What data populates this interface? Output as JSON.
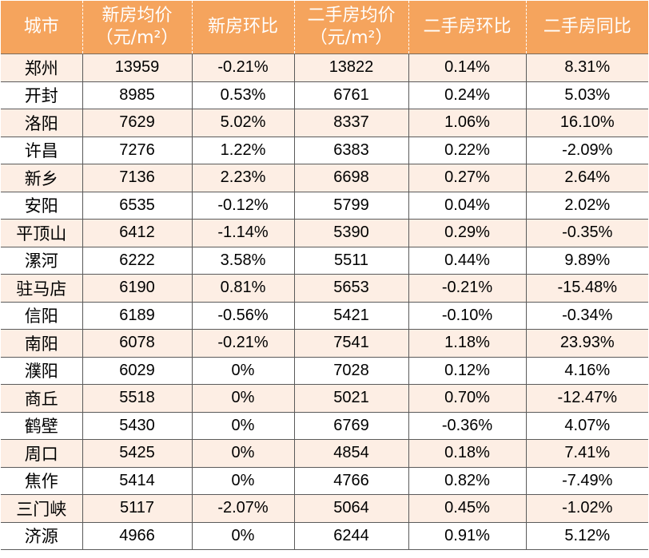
{
  "header": {
    "city": "城市",
    "new_price_line1": "新房均价",
    "new_price_line2": "（元/m²）",
    "new_mom": "新房环比",
    "second_price_line1": "二手房均价",
    "second_price_line2": "（元/m²）",
    "second_mom": "二手房环比",
    "second_yoy": "二手房同比"
  },
  "rows": [
    {
      "city": "郑州",
      "new_price": "13959",
      "new_mom": "-0.21%",
      "second_price": "13822",
      "second_mom": "0.14%",
      "second_yoy": "8.31%"
    },
    {
      "city": "开封",
      "new_price": "8985",
      "new_mom": "0.53%",
      "second_price": "6761",
      "second_mom": "0.24%",
      "second_yoy": "5.03%"
    },
    {
      "city": "洛阳",
      "new_price": "7629",
      "new_mom": "5.02%",
      "second_price": "8337",
      "second_mom": "1.06%",
      "second_yoy": "16.10%"
    },
    {
      "city": "许昌",
      "new_price": "7276",
      "new_mom": "1.22%",
      "second_price": "6383",
      "second_mom": "0.22%",
      "second_yoy": "-2.09%"
    },
    {
      "city": "新乡",
      "new_price": "7136",
      "new_mom": "2.23%",
      "second_price": "6698",
      "second_mom": "0.27%",
      "second_yoy": "2.64%"
    },
    {
      "city": "安阳",
      "new_price": "6535",
      "new_mom": "-0.12%",
      "second_price": "5799",
      "second_mom": "0.04%",
      "second_yoy": "2.02%"
    },
    {
      "city": "平顶山",
      "new_price": "6412",
      "new_mom": "-1.14%",
      "second_price": "5390",
      "second_mom": "0.29%",
      "second_yoy": "-0.35%"
    },
    {
      "city": "漯河",
      "new_price": "6222",
      "new_mom": "3.58%",
      "second_price": "5511",
      "second_mom": "0.44%",
      "second_yoy": "9.89%"
    },
    {
      "city": "驻马店",
      "new_price": "6190",
      "new_mom": "0.81%",
      "second_price": "5653",
      "second_mom": "-0.21%",
      "second_yoy": "-15.48%"
    },
    {
      "city": "信阳",
      "new_price": "6189",
      "new_mom": "-0.56%",
      "second_price": "5421",
      "second_mom": "-0.10%",
      "second_yoy": "-0.34%"
    },
    {
      "city": "南阳",
      "new_price": "6078",
      "new_mom": "-0.21%",
      "second_price": "7541",
      "second_mom": "1.18%",
      "second_yoy": "23.93%"
    },
    {
      "city": "濮阳",
      "new_price": "6029",
      "new_mom": "0%",
      "second_price": "7028",
      "second_mom": "0.12%",
      "second_yoy": "4.16%"
    },
    {
      "city": "商丘",
      "new_price": "5518",
      "new_mom": "0%",
      "second_price": "5021",
      "second_mom": "0.70%",
      "second_yoy": "-12.47%"
    },
    {
      "city": "鹤壁",
      "new_price": "5430",
      "new_mom": "0%",
      "second_price": "6769",
      "second_mom": "-0.36%",
      "second_yoy": "4.07%"
    },
    {
      "city": "周口",
      "new_price": "5425",
      "new_mom": "0%",
      "second_price": "4854",
      "second_mom": "0.18%",
      "second_yoy": "7.41%"
    },
    {
      "city": "焦作",
      "new_price": "5414",
      "new_mom": "0%",
      "second_price": "4766",
      "second_mom": "0.82%",
      "second_yoy": "-7.49%"
    },
    {
      "city": "三门峡",
      "new_price": "5117",
      "new_mom": "-2.07%",
      "second_price": "5064",
      "second_mom": "0.45%",
      "second_yoy": "-1.02%"
    },
    {
      "city": "济源",
      "new_price": "4966",
      "new_mom": "0%",
      "second_price": "6244",
      "second_mom": "0.91%",
      "second_yoy": "5.12%"
    }
  ],
  "colors": {
    "header_bg": "#f5a45d",
    "header_text": "#ffffff",
    "row_odd_bg": "#fdeee4",
    "row_even_bg": "#ffffff"
  }
}
